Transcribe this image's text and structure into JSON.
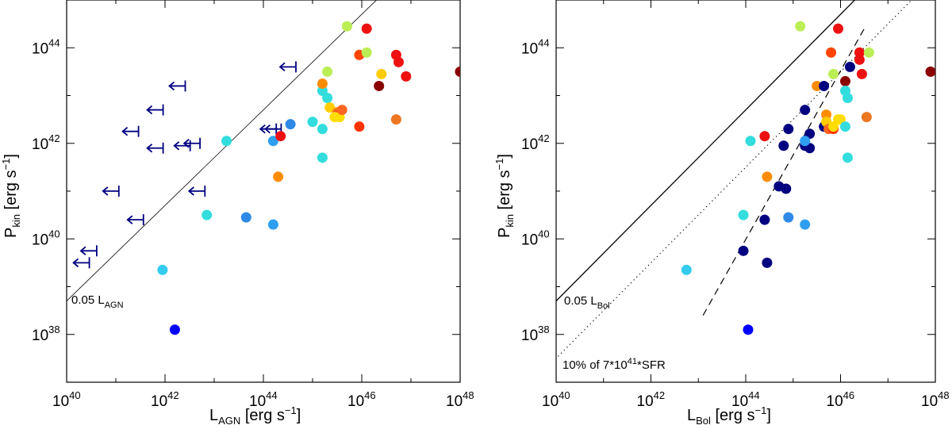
{
  "chart_data": [
    {
      "type": "scatter",
      "panel": "left",
      "xlabel": "L_AGN [erg s^-1]",
      "ylabel": "P_kin [erg s^-1]",
      "x_log_range": [
        40,
        48
      ],
      "y_log_range": [
        37,
        45
      ],
      "x_ticks": [
        "10^40",
        "10^42",
        "10^44",
        "10^46",
        "10^48"
      ],
      "y_ticks": [
        "10^38",
        "10^40",
        "10^42",
        "10^44"
      ],
      "x_tick_exponents": [
        40,
        42,
        44,
        46,
        48
      ],
      "y_tick_exponents": [
        38,
        40,
        42,
        44
      ],
      "lines": [
        {
          "name": "0.05 L_AGN",
          "style": "solid-thin",
          "log_offset": -1.3,
          "slope": 1
        }
      ],
      "annotations": [
        {
          "text": "0.05 L",
          "sub": "AGN"
        }
      ],
      "series": [
        {
          "name": "upper-limits",
          "marker": "left-arrow",
          "color": "#000080",
          "points": [
            {
              "x": 42.25,
              "y": 43.2
            },
            {
              "x": 41.8,
              "y": 42.7
            },
            {
              "x": 41.3,
              "y": 42.25
            },
            {
              "x": 41.8,
              "y": 41.9
            },
            {
              "x": 42.35,
              "y": 41.95
            },
            {
              "x": 42.55,
              "y": 42.0
            },
            {
              "x": 40.9,
              "y": 41.0
            },
            {
              "x": 42.65,
              "y": 41.0
            },
            {
              "x": 41.4,
              "y": 40.4
            },
            {
              "x": 40.45,
              "y": 39.75
            },
            {
              "x": 40.3,
              "y": 39.5
            },
            {
              "x": 44.5,
              "y": 43.6
            },
            {
              "x": 44.1,
              "y": 42.3
            },
            {
              "x": 44.2,
              "y": 42.3
            }
          ]
        },
        {
          "name": "detections",
          "marker": "filled-circle",
          "points": [
            {
              "x": 42.2,
              "y": 38.1,
              "color": "#0000ff"
            },
            {
              "x": 41.95,
              "y": 39.35,
              "color": "#33ccee"
            },
            {
              "x": 42.85,
              "y": 40.5,
              "color": "#33dddd"
            },
            {
              "x": 43.65,
              "y": 40.45,
              "color": "#2e8ae6"
            },
            {
              "x": 44.2,
              "y": 40.3,
              "color": "#2e9ff0"
            },
            {
              "x": 43.25,
              "y": 42.05,
              "color": "#33dddd"
            },
            {
              "x": 44.2,
              "y": 42.05,
              "color": "#2e9ff0"
            },
            {
              "x": 44.35,
              "y": 42.15,
              "color": "#ee1111"
            },
            {
              "x": 44.55,
              "y": 42.4,
              "color": "#2e8ae6"
            },
            {
              "x": 45.0,
              "y": 42.45,
              "color": "#33dddd"
            },
            {
              "x": 45.2,
              "y": 41.7,
              "color": "#33dddd"
            },
            {
              "x": 44.3,
              "y": 41.3,
              "color": "#ff8c00"
            },
            {
              "x": 45.2,
              "y": 42.3,
              "color": "#33dddd"
            },
            {
              "x": 45.3,
              "y": 42.95,
              "color": "#33dddd"
            },
            {
              "x": 45.2,
              "y": 43.1,
              "color": "#33dddd"
            },
            {
              "x": 45.2,
              "y": 43.25,
              "color": "#ff8c00"
            },
            {
              "x": 45.3,
              "y": 43.5,
              "color": "#bbee55"
            },
            {
              "x": 45.35,
              "y": 42.75,
              "color": "#ffcc00"
            },
            {
              "x": 45.5,
              "y": 42.65,
              "color": "#ff8c00"
            },
            {
              "x": 45.5,
              "y": 42.6,
              "color": "#ee5522"
            },
            {
              "x": 45.45,
              "y": 42.55,
              "color": "#ffdd00"
            },
            {
              "x": 45.55,
              "y": 42.55,
              "color": "#ffdd00"
            },
            {
              "x": 45.6,
              "y": 42.7,
              "color": "#ff6622"
            },
            {
              "x": 45.95,
              "y": 42.35,
              "color": "#ff3300"
            },
            {
              "x": 45.95,
              "y": 43.85,
              "color": "#ff4400"
            },
            {
              "x": 46.1,
              "y": 43.9,
              "color": "#bbee55"
            },
            {
              "x": 46.1,
              "y": 44.4,
              "color": "#ee1111"
            },
            {
              "x": 45.7,
              "y": 44.45,
              "color": "#bbee55"
            },
            {
              "x": 46.4,
              "y": 43.45,
              "color": "#ffcc00"
            },
            {
              "x": 46.35,
              "y": 43.2,
              "color": "#8b0000"
            },
            {
              "x": 46.7,
              "y": 43.85,
              "color": "#ee1111"
            },
            {
              "x": 46.75,
              "y": 43.7,
              "color": "#ee1111"
            },
            {
              "x": 46.9,
              "y": 43.4,
              "color": "#ee1111"
            },
            {
              "x": 46.7,
              "y": 42.5,
              "color": "#ee7722"
            },
            {
              "x": 48.0,
              "y": 43.5,
              "color": "#8b0000"
            }
          ]
        }
      ]
    },
    {
      "type": "scatter",
      "panel": "right",
      "xlabel": "L_Bol [erg s^-1]",
      "ylabel": "P_kin [erg s^-1]",
      "x_log_range": [
        40,
        48
      ],
      "y_log_range": [
        37,
        45
      ],
      "x_ticks": [
        "10^40",
        "10^42",
        "10^44",
        "10^46",
        "10^48"
      ],
      "y_ticks": [
        "10^38",
        "10^40",
        "10^42",
        "10^44"
      ],
      "x_tick_exponents": [
        40,
        42,
        44,
        46,
        48
      ],
      "y_tick_exponents": [
        38,
        40,
        42,
        44
      ],
      "lines": [
        {
          "name": "0.05 L_Bol",
          "style": "solid",
          "log_offset": -1.3,
          "slope": 1
        },
        {
          "name": "10% of 7*10^41*SFR",
          "style": "dotted",
          "log_offset": -2.5,
          "slope": 1
        },
        {
          "name": "fit",
          "style": "dashed",
          "x_range": [
            43.1,
            46.5
          ],
          "y_at_start": 38.4,
          "y_at_end": 44.4
        }
      ],
      "annotations": [
        {
          "text": "0.05 L",
          "sub": "Bol"
        },
        {
          "text": "10% of 7*10",
          "sup": "41",
          "suffix": "*SFR"
        }
      ],
      "series": [
        {
          "name": "detections",
          "marker": "filled-circle",
          "points": [
            {
              "x": 44.05,
              "y": 38.1,
              "color": "#0000ff"
            },
            {
              "x": 42.75,
              "y": 39.35,
              "color": "#33ccee"
            },
            {
              "x": 43.95,
              "y": 39.75,
              "color": "#000080"
            },
            {
              "x": 44.45,
              "y": 39.5,
              "color": "#000080"
            },
            {
              "x": 43.95,
              "y": 40.5,
              "color": "#33dddd"
            },
            {
              "x": 44.4,
              "y": 40.4,
              "color": "#000080"
            },
            {
              "x": 44.9,
              "y": 40.45,
              "color": "#2e8ae6"
            },
            {
              "x": 45.25,
              "y": 40.3,
              "color": "#2e9ff0"
            },
            {
              "x": 44.7,
              "y": 41.1,
              "color": "#000080"
            },
            {
              "x": 44.85,
              "y": 41.05,
              "color": "#000080"
            },
            {
              "x": 44.45,
              "y": 41.3,
              "color": "#ff8c00"
            },
            {
              "x": 44.1,
              "y": 42.05,
              "color": "#33dddd"
            },
            {
              "x": 44.4,
              "y": 42.15,
              "color": "#ee1111"
            },
            {
              "x": 44.8,
              "y": 41.95,
              "color": "#000080"
            },
            {
              "x": 44.9,
              "y": 42.3,
              "color": "#000080"
            },
            {
              "x": 45.25,
              "y": 41.95,
              "color": "#000080"
            },
            {
              "x": 45.35,
              "y": 41.9,
              "color": "#000080"
            },
            {
              "x": 45.35,
              "y": 42.2,
              "color": "#000080"
            },
            {
              "x": 45.25,
              "y": 42.05,
              "color": "#2e9ff0"
            },
            {
              "x": 45.25,
              "y": 42.7,
              "color": "#000080"
            },
            {
              "x": 45.15,
              "y": 44.45,
              "color": "#bbee55"
            },
            {
              "x": 45.5,
              "y": 43.2,
              "color": "#ff8c00"
            },
            {
              "x": 45.65,
              "y": 43.2,
              "color": "#000080"
            },
            {
              "x": 45.65,
              "y": 42.35,
              "color": "#000080"
            },
            {
              "x": 45.7,
              "y": 42.6,
              "color": "#ff8c00"
            },
            {
              "x": 45.7,
              "y": 42.45,
              "color": "#ffcc00"
            },
            {
              "x": 45.75,
              "y": 42.3,
              "color": "#ff6622"
            },
            {
              "x": 45.8,
              "y": 43.9,
              "color": "#ff4400"
            },
            {
              "x": 45.85,
              "y": 43.45,
              "color": "#bbee55"
            },
            {
              "x": 45.85,
              "y": 42.3,
              "color": "#ff3300"
            },
            {
              "x": 45.85,
              "y": 42.35,
              "color": "#ffdd00"
            },
            {
              "x": 45.95,
              "y": 42.5,
              "color": "#ffdd00"
            },
            {
              "x": 46.0,
              "y": 42.5,
              "color": "#ffdd00"
            },
            {
              "x": 45.95,
              "y": 44.4,
              "color": "#ee1111"
            },
            {
              "x": 46.1,
              "y": 43.3,
              "color": "#8b0000"
            },
            {
              "x": 46.1,
              "y": 43.1,
              "color": "#33dddd"
            },
            {
              "x": 46.15,
              "y": 42.95,
              "color": "#33dddd"
            },
            {
              "x": 46.1,
              "y": 42.35,
              "color": "#33dddd"
            },
            {
              "x": 46.15,
              "y": 41.7,
              "color": "#33dddd"
            },
            {
              "x": 46.2,
              "y": 43.6,
              "color": "#000080"
            },
            {
              "x": 46.4,
              "y": 43.9,
              "color": "#ee1111"
            },
            {
              "x": 46.4,
              "y": 43.75,
              "color": "#ee1111"
            },
            {
              "x": 46.45,
              "y": 43.45,
              "color": "#ee1111"
            },
            {
              "x": 46.6,
              "y": 43.9,
              "color": "#bbee55"
            },
            {
              "x": 46.55,
              "y": 42.55,
              "color": "#ee7722"
            },
            {
              "x": 47.9,
              "y": 43.5,
              "color": "#8b0000"
            }
          ]
        }
      ]
    }
  ]
}
